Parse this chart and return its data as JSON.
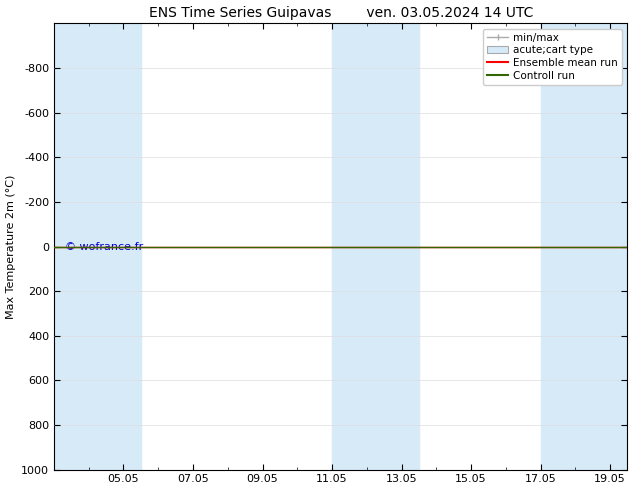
{
  "title_left": "ENS Time Series Guipavas",
  "title_right": "ven. 03.05.2024 14 UTC",
  "ylabel": "Max Temperature 2m (°C)",
  "watermark": "© wofrance.fr",
  "watermark_color": "#0000cc",
  "xtick_labels": [
    "05.05",
    "07.05",
    "09.05",
    "11.05",
    "13.05",
    "15.05",
    "17.05",
    "19.05"
  ],
  "xtick_positions": [
    2,
    4,
    6,
    8,
    10,
    12,
    14,
    16
  ],
  "ylim_top": -1000,
  "ylim_bottom": 1000,
  "yticks": [
    -800,
    -600,
    -400,
    -200,
    0,
    200,
    400,
    600,
    800,
    1000
  ],
  "background_color": "#ffffff",
  "plot_bg_color": "#ffffff",
  "shaded_bands": [
    {
      "x_start": 0.0,
      "x_end": 2.5,
      "color": "#d6eaf8"
    },
    {
      "x_start": 8.0,
      "x_end": 10.5,
      "color": "#d6eaf8"
    },
    {
      "x_start": 14.0,
      "x_end": 16.5,
      "color": "#d6eaf8"
    }
  ],
  "horizontal_line_color_red": "#ff0000",
  "horizontal_line_color_green": "#336600",
  "legend_items": [
    {
      "label": "min/max",
      "type": "errorbar",
      "color": "#aaaaaa"
    },
    {
      "label": "acute;cart type",
      "type": "box",
      "color": "#d6eaf8"
    },
    {
      "label": "Ensemble mean run",
      "type": "line",
      "color": "#ff0000"
    },
    {
      "label": "Controll run",
      "type": "line",
      "color": "#336600"
    }
  ],
  "font_size_title": 10,
  "font_size_axis": 8,
  "font_size_legend": 7.5,
  "font_size_watermark": 8,
  "grid_color": "#dddddd",
  "axis_line_color": "#000000",
  "xlim": [
    0,
    16.5
  ]
}
